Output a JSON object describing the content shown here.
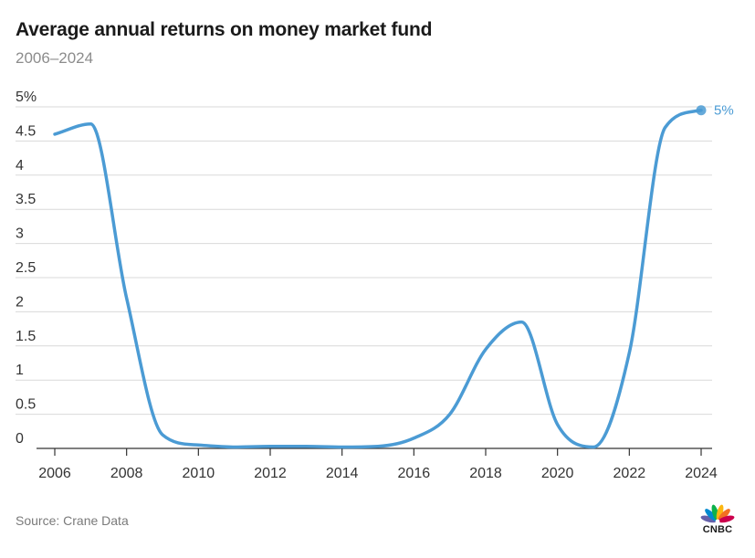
{
  "header": {
    "title": "Average annual returns on money market fund",
    "subtitle": "2006–2024"
  },
  "footer": {
    "source": "Source: Crane Data",
    "logo_text": "CNBC"
  },
  "colors": {
    "line": "#4b9bd4",
    "grid": "#d9d9d9",
    "axis": "#333333"
  },
  "chart_data": {
    "type": "line",
    "title": "Average annual returns on money market fund",
    "subtitle": "2006–2024",
    "xlabel": "",
    "ylabel": "",
    "xlim": [
      2006,
      2024
    ],
    "ylim": [
      0,
      5
    ],
    "x_ticks": [
      2006,
      2008,
      2010,
      2012,
      2014,
      2016,
      2018,
      2020,
      2022,
      2024
    ],
    "x_tick_labels": [
      "2006",
      "2008",
      "2010",
      "2012",
      "2014",
      "2016",
      "2018",
      "2020",
      "2022",
      "2024"
    ],
    "y_ticks": [
      0,
      0.5,
      1,
      1.5,
      2,
      2.5,
      3,
      3.5,
      4,
      4.5,
      5
    ],
    "y_tick_labels": [
      "0",
      "0.5",
      "1",
      "1.5",
      "2",
      "2.5",
      "3",
      "3.5",
      "4",
      "4.5",
      "5%"
    ],
    "grid": true,
    "series": [
      {
        "x": [
          2006,
          2007,
          2008,
          2009,
          2010,
          2011,
          2012,
          2013,
          2014,
          2015,
          2016,
          2017,
          2018,
          2019,
          2020,
          2021,
          2022,
          2023,
          2024
        ],
        "values": [
          4.6,
          4.75,
          2.2,
          0.2,
          0.05,
          0.02,
          0.03,
          0.03,
          0.02,
          0.03,
          0.15,
          0.5,
          1.45,
          1.85,
          0.35,
          0.02,
          1.4,
          4.7,
          4.95
        ]
      }
    ],
    "end_label": "5%"
  }
}
